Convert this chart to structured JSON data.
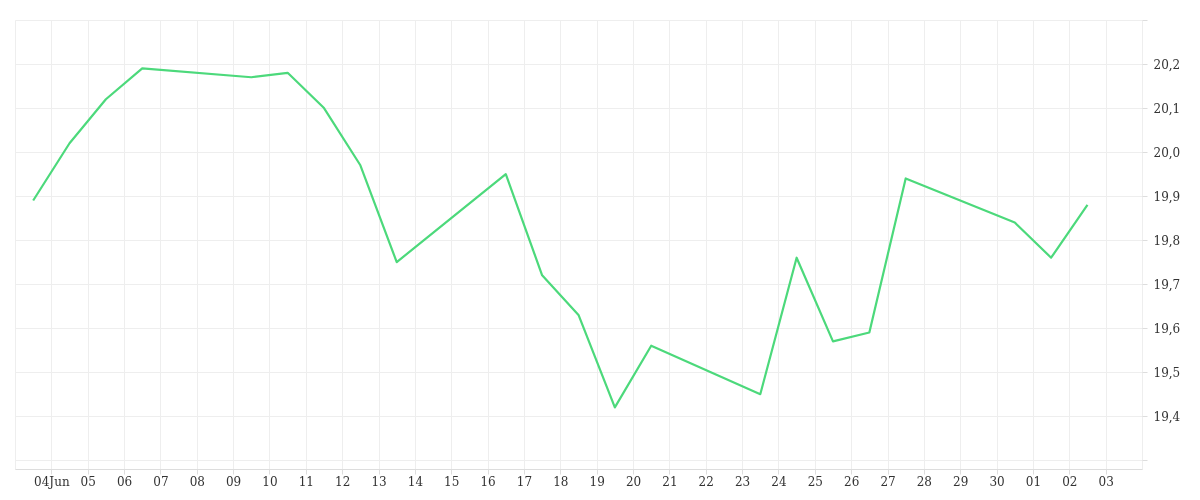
{
  "chart_data": {
    "type": "line",
    "x": [
      "--06-03T12:00",
      "--06-04T12:00",
      "--06-05T12:00",
      "--06-06T12:00",
      "--06-09T12:00",
      "--06-10T12:00",
      "--06-11T12:00",
      "--06-12T12:00",
      "--06-13T12:00",
      "--06-16T12:00",
      "--06-17T12:00",
      "--06-18T12:00",
      "--06-19T12:00",
      "--06-20T12:00",
      "--06-23T12:00",
      "--06-24T12:00",
      "--06-25T12:00",
      "--06-26T12:00",
      "--06-27T12:00",
      "--06-30T12:00",
      "--07-01T12:00",
      "--07-02T12:00"
    ],
    "series": [
      {
        "color": "#4cd97b",
        "values": [
          19.89,
          20.02,
          20.12,
          20.19,
          20.17,
          20.18,
          20.1,
          19.97,
          19.75,
          19.95,
          19.72,
          19.63,
          19.42,
          19.56,
          19.45,
          19.76,
          19.57,
          19.59,
          19.94,
          19.84,
          19.76,
          19.88
        ]
      }
    ],
    "xlim": [
      "--06-03",
      "--07-04"
    ],
    "xticks": [
      {
        "value": "--06-04",
        "label": "04Jun"
      },
      {
        "value": "--06-05",
        "label": "05"
      },
      {
        "value": "--06-06",
        "label": "06"
      },
      {
        "value": "--06-07",
        "label": "07"
      },
      {
        "value": "--06-08",
        "label": "08"
      },
      {
        "value": "--06-09",
        "label": "09"
      },
      {
        "value": "--06-10",
        "label": "10"
      },
      {
        "value": "--06-11",
        "label": "11"
      },
      {
        "value": "--06-12",
        "label": "12"
      },
      {
        "value": "--06-13",
        "label": "13"
      },
      {
        "value": "--06-14",
        "label": "14"
      },
      {
        "value": "--06-15",
        "label": "15"
      },
      {
        "value": "--06-16",
        "label": "16"
      },
      {
        "value": "--06-17",
        "label": "17"
      },
      {
        "value": "--06-18",
        "label": "18"
      },
      {
        "value": "--06-19",
        "label": "19"
      },
      {
        "value": "--06-20",
        "label": "20"
      },
      {
        "value": "--06-21",
        "label": "21"
      },
      {
        "value": "--06-22",
        "label": "22"
      },
      {
        "value": "--06-23",
        "label": "23"
      },
      {
        "value": "--06-24",
        "label": "24"
      },
      {
        "value": "--06-25",
        "label": "25"
      },
      {
        "value": "--06-26",
        "label": "26"
      },
      {
        "value": "--06-27",
        "label": "27"
      },
      {
        "value": "--06-28",
        "label": "28"
      },
      {
        "value": "--06-29",
        "label": "29"
      },
      {
        "value": "--06-30",
        "label": "30"
      },
      {
        "value": "--07-01",
        "label": "01"
      },
      {
        "value": "--07-02",
        "label": "02"
      },
      {
        "value": "--07-03",
        "label": "03"
      }
    ],
    "ylim": [
      19.28,
      20.3
    ],
    "yticks": [
      {
        "value": 19.3,
        "label": null
      },
      {
        "value": 19.4,
        "label": "19,4"
      },
      {
        "value": 19.5,
        "label": "19,5"
      },
      {
        "value": 19.6,
        "label": "19,6"
      },
      {
        "value": 19.7,
        "label": "19,7"
      },
      {
        "value": 19.8,
        "label": "19,8"
      },
      {
        "value": 19.9,
        "label": "19,9"
      },
      {
        "value": 20.0,
        "label": "20,0"
      },
      {
        "value": 20.1,
        "label": "20,1"
      },
      {
        "value": 20.2,
        "label": "20,2"
      },
      {
        "value": 20.3,
        "label": null
      }
    ],
    "grid": true,
    "marker": "none",
    "line_style": "solid"
  }
}
